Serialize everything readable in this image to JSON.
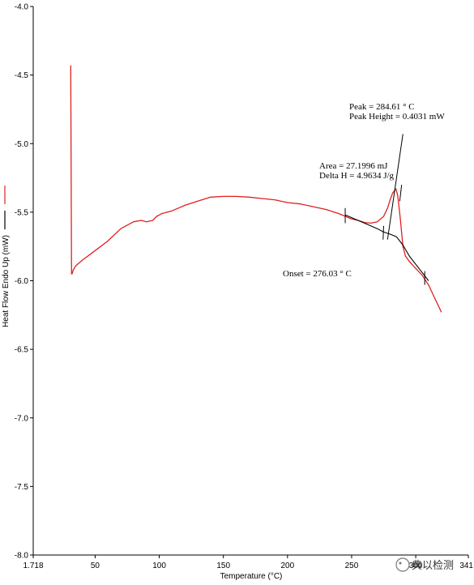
{
  "chart_data": {
    "type": "line",
    "xlabel": "Temperature (°C)",
    "ylabel": "Heat Flow Endo Up (mW)",
    "xlim": [
      1.718,
      341
    ],
    "ylim": [
      -8.0,
      -4.0
    ],
    "x_tick_labels": [
      "1.718",
      "50",
      "100",
      "150",
      "200",
      "250",
      "300",
      "341"
    ],
    "x_tick_values": [
      1.718,
      50,
      100,
      150,
      200,
      250,
      300,
      341
    ],
    "y_tick_labels": [
      "-4.0",
      "-4.5",
      "-5.0",
      "-5.5",
      "-6.0",
      "-6.5",
      "-7.0",
      "-7.5",
      "-8.0"
    ],
    "y_tick_values": [
      -4.0,
      -4.5,
      -5.0,
      -5.5,
      -6.0,
      -6.5,
      -7.0,
      -7.5,
      -8.0
    ],
    "grid": false,
    "series": [
      {
        "color": "#e02020",
        "x": [
          31.0,
          31.3,
          31.6,
          32.0,
          33,
          35,
          40,
          50,
          60,
          70,
          80,
          86,
          90,
          95,
          98,
          100,
          102,
          110,
          120,
          130,
          140,
          150,
          160,
          170,
          180,
          190,
          200,
          210,
          220,
          230,
          240,
          250,
          255,
          260,
          265,
          270,
          275,
          278,
          280,
          282,
          284.61,
          286,
          288,
          290,
          292,
          295,
          300,
          305,
          310,
          315,
          320
        ],
        "y": [
          -4.43,
          -5.2,
          -5.95,
          -5.95,
          -5.92,
          -5.89,
          -5.85,
          -5.78,
          -5.71,
          -5.62,
          -5.57,
          -5.56,
          -5.57,
          -5.56,
          -5.53,
          -5.52,
          -5.51,
          -5.49,
          -5.45,
          -5.42,
          -5.39,
          -5.385,
          -5.385,
          -5.39,
          -5.4,
          -5.41,
          -5.43,
          -5.44,
          -5.46,
          -5.48,
          -5.51,
          -5.55,
          -5.56,
          -5.575,
          -5.58,
          -5.57,
          -5.53,
          -5.47,
          -5.41,
          -5.36,
          -5.33,
          -5.38,
          -5.55,
          -5.75,
          -5.82,
          -5.86,
          -5.91,
          -5.96,
          -6.03,
          -6.13,
          -6.23
        ]
      },
      {
        "color": "#000000",
        "x": [
          245,
          250,
          260,
          270,
          275,
          280,
          285,
          290,
          295,
          300,
          305,
          310
        ],
        "y": [
          -5.52,
          -5.54,
          -5.58,
          -5.62,
          -5.645,
          -5.66,
          -5.68,
          -5.74,
          -5.82,
          -5.88,
          -5.94,
          -6.0
        ]
      }
    ],
    "annotations": [
      {
        "lines": [
          "Peak = 284.61 ° C",
          "Peak Height = 0.4031 mW"
        ]
      },
      {
        "lines": [
          "Area = 27.1996 mJ",
          "Delta H = 4.9634 J/g"
        ]
      },
      {
        "lines": [
          "Onset = 276.03 ° C"
        ]
      }
    ],
    "legend": [
      "",
      ""
    ],
    "legend_placement": "left, beside y-axis title"
  },
  "watermark": "典以检测"
}
